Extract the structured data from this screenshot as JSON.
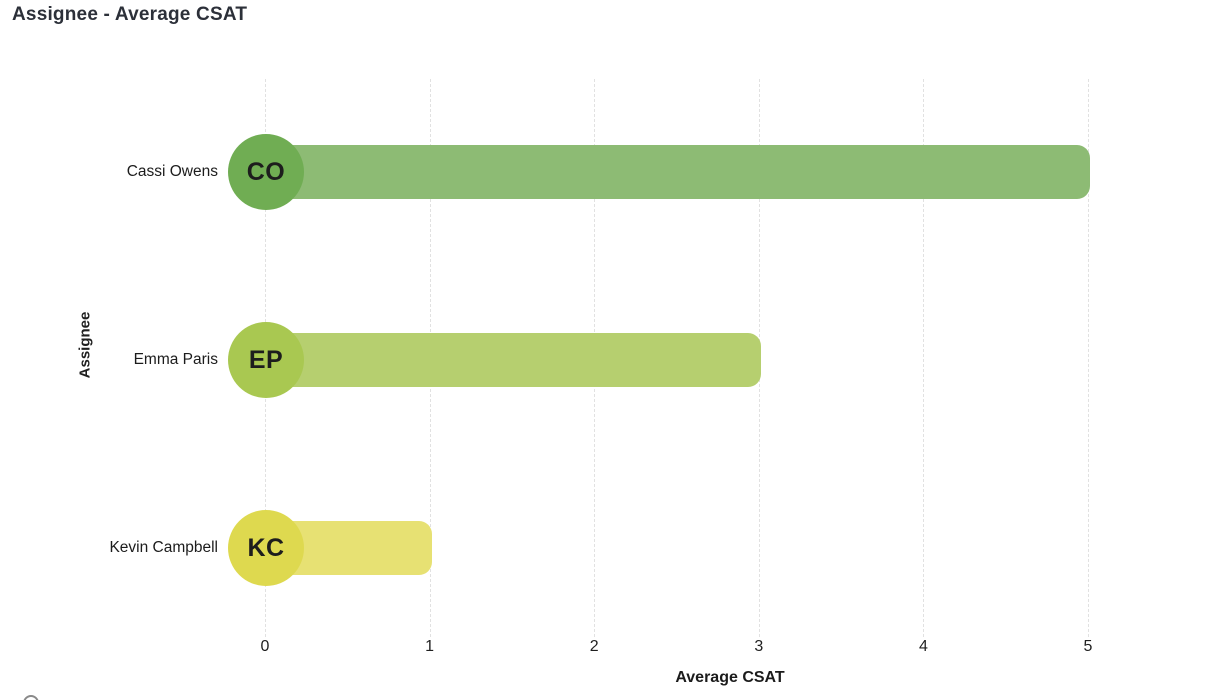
{
  "title": "Assignee - Average CSAT",
  "chart_data": {
    "type": "bar",
    "orientation": "horizontal",
    "title": "Assignee - Average CSAT",
    "xlabel": "Average CSAT",
    "ylabel": "Assignee",
    "xlim": [
      0,
      5
    ],
    "x_ticks": [
      "0",
      "1",
      "2",
      "3",
      "4",
      "5"
    ],
    "grid": "vertical-dashed",
    "legend": "none",
    "categories": [
      "Cassi Owens",
      "Emma Paris",
      "Kevin Campbell"
    ],
    "series": [
      {
        "name": "Average CSAT",
        "values": [
          5,
          3,
          1
        ]
      }
    ],
    "points": [
      {
        "label": "Cassi Owens",
        "initials": "CO",
        "value": 5,
        "bar_color": "#8dbb74",
        "avatar_color": "#70ad53"
      },
      {
        "label": "Emma Paris",
        "initials": "EP",
        "value": 3,
        "bar_color": "#b6cf6f",
        "avatar_color": "#a9c851"
      },
      {
        "label": "Kevin Campbell",
        "initials": "KC",
        "value": 1,
        "bar_color": "#e7e173",
        "avatar_color": "#ded94f"
      }
    ]
  },
  "colors": {
    "title_text": "#2c3039",
    "axis_text": "#1f1f1f",
    "gridline": "#e1e1e1"
  }
}
